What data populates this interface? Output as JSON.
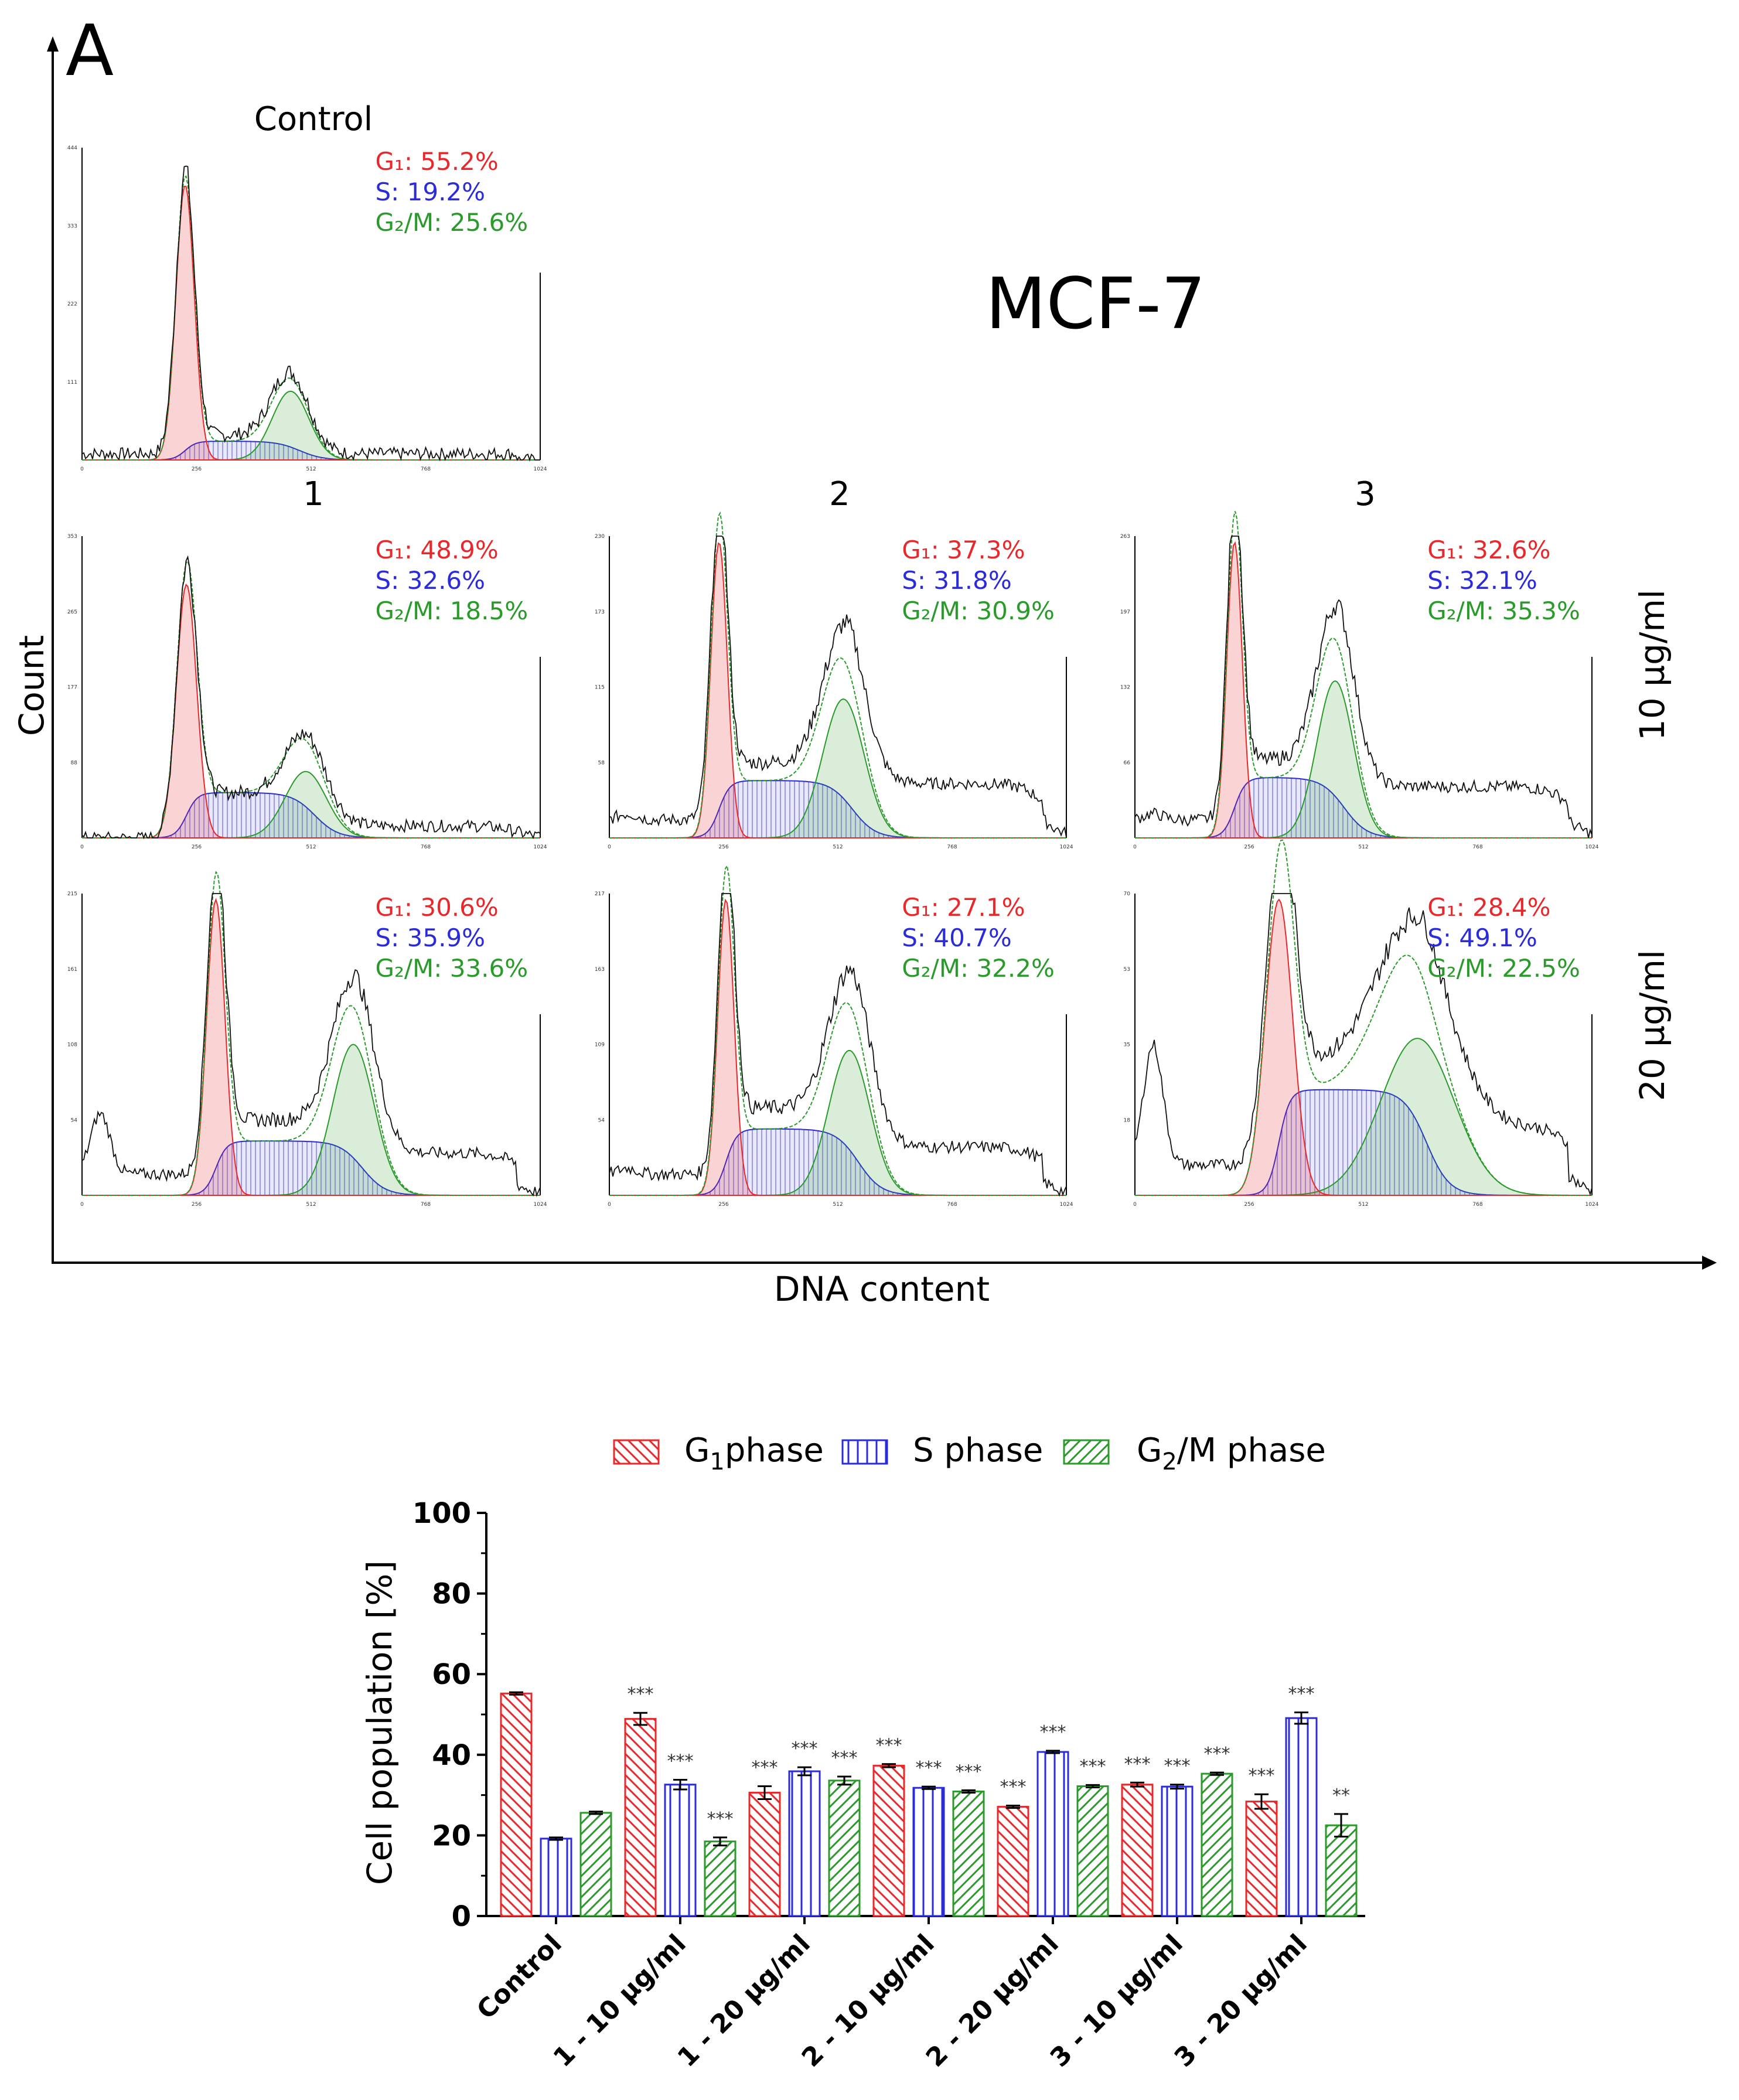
{
  "panel_label": "A",
  "cell_line": "MCF-7",
  "column_labels": [
    "1",
    "2",
    "3"
  ],
  "row_labels": [
    "10 µg/ml",
    "20 µg/ml"
  ],
  "top_y_label": "Count",
  "top_x_label": "DNA content",
  "histogram_x_ticks": [
    "0",
    "256",
    "512",
    "768",
    "1024"
  ],
  "histograms": [
    {
      "id": "control",
      "title": "Control",
      "ymax": "444",
      "yticks": [
        "111",
        "222",
        "333",
        "444"
      ],
      "g1_value": 55.2,
      "s_value": 19.2,
      "g2m_value": 25.6,
      "g1_text": "G₁: 55.2%",
      "s_text": "S: 19.2%",
      "g2m_text": "G₂/M: 25.6%"
    },
    {
      "id": "1-10",
      "title": "",
      "ymax": "353",
      "yticks": [
        "88",
        "177",
        "265",
        "353"
      ],
      "g1_value": 48.9,
      "s_value": 32.6,
      "g2m_value": 18.5,
      "g1_text": "G₁: 48.9%",
      "s_text": "S: 32.6%",
      "g2m_text": "G₂/M: 18.5%"
    },
    {
      "id": "2-10",
      "title": "",
      "ymax": "230",
      "yticks": [
        "58",
        "115",
        "173",
        "230"
      ],
      "g1_value": 37.3,
      "s_value": 31.8,
      "g2m_value": 30.9,
      "g1_text": "G₁: 37.3%",
      "s_text": "S: 31.8%",
      "g2m_text": "G₂/M: 30.9%"
    },
    {
      "id": "3-10",
      "title": "",
      "ymax": "263",
      "yticks": [
        "66",
        "132",
        "197",
        "263"
      ],
      "g1_value": 32.6,
      "s_value": 32.1,
      "g2m_value": 35.3,
      "g1_text": "G₁: 32.6%",
      "s_text": "S: 32.1%",
      "g2m_text": "G₂/M: 35.3%"
    },
    {
      "id": "1-20",
      "title": "",
      "ymax": "215",
      "yticks": [
        "54",
        "108",
        "161",
        "215"
      ],
      "g1_value": 30.6,
      "s_value": 35.9,
      "g2m_value": 33.6,
      "g1_text": "G₁: 30.6%",
      "s_text": "S: 35.9%",
      "g2m_text": "G₂/M: 33.6%"
    },
    {
      "id": "2-20",
      "title": "",
      "ymax": "217",
      "yticks": [
        "54",
        "109",
        "163",
        "217"
      ],
      "g1_value": 27.1,
      "s_value": 40.7,
      "g2m_value": 32.2,
      "g1_text": "G₁: 27.1%",
      "s_text": "S: 40.7%",
      "g2m_text": "G₂/M: 32.2%"
    },
    {
      "id": "3-20",
      "title": "",
      "ymax": "70",
      "yticks": [
        "18",
        "35",
        "53",
        "70"
      ],
      "g1_value": 28.4,
      "s_value": 49.1,
      "g2m_value": 22.5,
      "g1_text": "G₁: 28.4%",
      "s_text": "S: 49.1%",
      "g2m_text": "G₂/M: 22.5%"
    }
  ],
  "colors": {
    "g1": "#e8282b",
    "s": "#2b2bd9",
    "g2m": "#2a9a2a",
    "axis": "#000000"
  },
  "chart_data": {
    "type": "bar",
    "title": "",
    "xlabel": "",
    "ylabel": "Cell population [%]",
    "ylim": [
      0,
      100
    ],
    "yticks": [
      0,
      20,
      40,
      60,
      80,
      100
    ],
    "categories": [
      "Control",
      "1 - 10 µg/ml",
      "1 - 20 µg/ml",
      "2 - 10 µg/ml",
      "2 - 20 µg/ml",
      "3 - 10 µg/ml",
      "3 - 20 µg/ml"
    ],
    "legend_position": "top",
    "series": [
      {
        "name": "G1phase",
        "legend_main": "G",
        "legend_sub": "1",
        "legend_rest": "phase",
        "values": [
          55.2,
          48.9,
          30.6,
          37.3,
          27.1,
          32.6,
          28.4
        ],
        "errors": [
          0.3,
          1.5,
          1.6,
          0.4,
          0.3,
          0.5,
          1.8
        ],
        "significance": [
          "",
          "***",
          "***",
          "***",
          "***",
          "***",
          "***"
        ]
      },
      {
        "name": "S phase",
        "legend_main": "S phase",
        "legend_sub": "",
        "legend_rest": "",
        "values": [
          19.2,
          32.6,
          35.9,
          31.8,
          40.7,
          32.1,
          49.1
        ],
        "errors": [
          0.3,
          1.2,
          1.0,
          0.3,
          0.3,
          0.5,
          1.4
        ],
        "significance": [
          "",
          "***",
          "***",
          "***",
          "***",
          "***",
          "***"
        ]
      },
      {
        "name": "G2/M phase",
        "legend_main": "G",
        "legend_sub": "2",
        "legend_rest": "/M phase",
        "values": [
          25.6,
          18.5,
          33.6,
          30.9,
          32.2,
          35.3,
          22.5
        ],
        "errors": [
          0.3,
          1.0,
          1.0,
          0.3,
          0.3,
          0.3,
          2.8
        ],
        "significance": [
          "",
          "***",
          "***",
          "***",
          "***",
          "***",
          "**"
        ]
      }
    ]
  }
}
